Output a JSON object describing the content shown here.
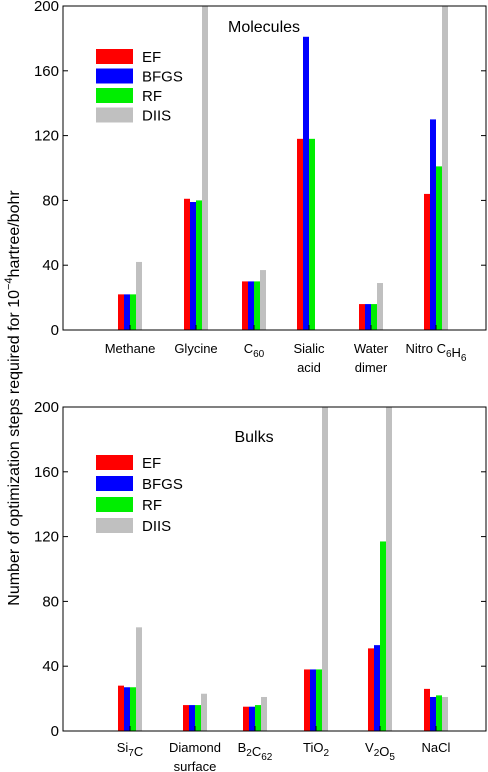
{
  "ylabel": {
    "pre": "Number of optimization steps required for 10",
    "sup": "−4",
    "post": "hartree/bohr"
  },
  "chart_data": [
    {
      "type": "bar",
      "title": "Molecules",
      "ylim": [
        0,
        200
      ],
      "yticks": [
        "0",
        "40",
        "80",
        "120",
        "160",
        "200"
      ],
      "legend_position": "top-left",
      "categories": [
        {
          "lines": [
            [
              {
                "t": "Methane"
              }
            ]
          ]
        },
        {
          "lines": [
            [
              {
                "t": "Glycine"
              }
            ]
          ]
        },
        {
          "lines": [
            [
              {
                "t": "C"
              },
              {
                "t": "60",
                "sub": true
              }
            ]
          ]
        },
        {
          "lines": [
            [
              {
                "t": "Sialic"
              }
            ],
            [
              {
                "t": "acid"
              }
            ]
          ]
        },
        {
          "lines": [
            [
              {
                "t": "Water"
              }
            ],
            [
              {
                "t": "dimer"
              }
            ]
          ]
        },
        {
          "lines": [
            [
              {
                "t": "Nitro C"
              },
              {
                "t": "6",
                "sub": true
              },
              {
                "t": "H"
              },
              {
                "t": "6",
                "sub": true
              }
            ]
          ]
        }
      ],
      "series": [
        {
          "name": "EF",
          "color": "#ff0000",
          "values": [
            22,
            81,
            30,
            118,
            16,
            84
          ]
        },
        {
          "name": "BFGS",
          "color": "#0000ff",
          "values": [
            22,
            79,
            30,
            181,
            16,
            130
          ]
        },
        {
          "name": "RF",
          "color": "#00ee00",
          "values": [
            22,
            80,
            30,
            118,
            16,
            101
          ]
        },
        {
          "name": "DIIS",
          "color": "#c0c0c0",
          "values": [
            42,
            200,
            37,
            null,
            29,
            200
          ]
        }
      ]
    },
    {
      "type": "bar",
      "title": "Bulks",
      "ylim": [
        0,
        200
      ],
      "yticks": [
        "0",
        "40",
        "80",
        "120",
        "160",
        "200"
      ],
      "legend_position": "top-left",
      "categories": [
        {
          "lines": [
            [
              {
                "t": "Si"
              },
              {
                "t": "7",
                "sub": true
              },
              {
                "t": "C"
              }
            ]
          ]
        },
        {
          "lines": [
            [
              {
                "t": "Diamond"
              }
            ],
            [
              {
                "t": "surface"
              }
            ]
          ]
        },
        {
          "lines": [
            [
              {
                "t": "B"
              },
              {
                "t": "2",
                "sub": true
              },
              {
                "t": "C"
              },
              {
                "t": "62",
                "sub": true
              }
            ]
          ]
        },
        {
          "lines": [
            [
              {
                "t": "TiO"
              },
              {
                "t": "2",
                "sub": true
              }
            ]
          ]
        },
        {
          "lines": [
            [
              {
                "t": "V"
              },
              {
                "t": "2",
                "sub": true
              },
              {
                "t": "O"
              },
              {
                "t": "5",
                "sub": true
              }
            ]
          ]
        },
        {
          "lines": [
            [
              {
                "t": "NaCl"
              }
            ]
          ]
        }
      ],
      "series": [
        {
          "name": "EF",
          "color": "#ff0000",
          "values": [
            28,
            16,
            15,
            38,
            51,
            26
          ]
        },
        {
          "name": "BFGS",
          "color": "#0000ff",
          "values": [
            27,
            16,
            15,
            38,
            53,
            21
          ]
        },
        {
          "name": "RF",
          "color": "#00ee00",
          "values": [
            27,
            16,
            16,
            38,
            117,
            22
          ]
        },
        {
          "name": "DIIS",
          "color": "#c0c0c0",
          "values": [
            64,
            23,
            21,
            200,
            200,
            21
          ]
        }
      ]
    }
  ]
}
